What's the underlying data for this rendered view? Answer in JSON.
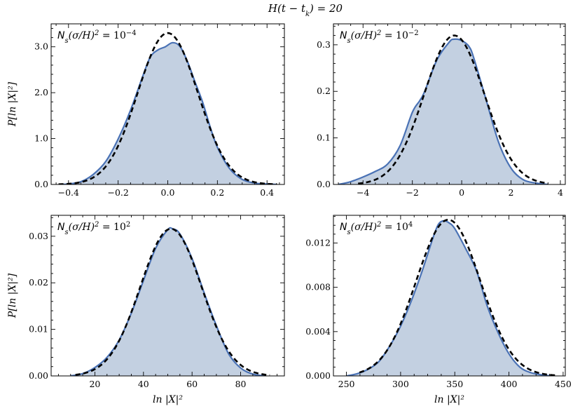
{
  "figure": {
    "title": "H(t − t_k) = 20",
    "title_parts": {
      "base": "H(t − t",
      "sub": "k",
      "tail": ") = 20"
    }
  },
  "chart_data": [
    {
      "type": "area",
      "panel": "top-left",
      "annotation": {
        "prefix": "N",
        "sub": "s",
        "mid": "(σ/H)",
        "sup1": "2",
        "eq": " = 10",
        "sup2": "−4"
      },
      "ylabel": "P[ln |X|²]",
      "xlabel": "",
      "xlim": [
        -0.47,
        0.47
      ],
      "ylim": [
        0,
        3.5
      ],
      "xticks": [
        -0.4,
        -0.2,
        0.0,
        0.2,
        0.4
      ],
      "xtick_labels": [
        "−0.4",
        "−0.2",
        "0.0",
        "0.2",
        "0.4"
      ],
      "yticks": [
        0,
        1,
        2,
        3
      ],
      "ytick_labels": [
        "0.0",
        "1.0",
        "2.0",
        "3.0"
      ],
      "series": [
        {
          "name": "histogram (smoothed)",
          "style": "filled-solid",
          "x": [
            -0.44,
            -0.4,
            -0.35,
            -0.3,
            -0.25,
            -0.2,
            -0.15,
            -0.1,
            -0.07,
            -0.04,
            -0.01,
            0.02,
            0.05,
            0.08,
            0.11,
            0.14,
            0.17,
            0.2,
            0.25,
            0.3,
            0.35,
            0.4,
            0.44
          ],
          "y": [
            0.0,
            0.01,
            0.06,
            0.22,
            0.5,
            0.99,
            1.62,
            2.37,
            2.78,
            2.93,
            3.0,
            3.09,
            3.0,
            2.67,
            2.23,
            1.8,
            1.27,
            0.81,
            0.34,
            0.11,
            0.03,
            0.01,
            0.0
          ]
        },
        {
          "name": "Gaussian fit",
          "style": "dashed",
          "mu": 0.0,
          "sigma": 0.121,
          "amplitude": 3.3,
          "x_range": [
            -0.44,
            0.44
          ]
        }
      ]
    },
    {
      "type": "area",
      "panel": "top-right",
      "annotation": {
        "prefix": "N",
        "sub": "s",
        "mid": "(σ/H)",
        "sup1": "2",
        "eq": " = 10",
        "sup2": "−2"
      },
      "ylabel": "",
      "xlabel": "",
      "xlim": [
        -5.2,
        4.2
      ],
      "ylim": [
        0,
        0.345
      ],
      "xticks": [
        -4,
        -2,
        0,
        2,
        4
      ],
      "xtick_labels": [
        "−4",
        "−2",
        "0",
        "2",
        "4"
      ],
      "yticks": [
        0,
        0.1,
        0.2,
        0.3
      ],
      "ytick_labels": [
        "0.0",
        "0.1",
        "0.2",
        "0.3"
      ],
      "series": [
        {
          "name": "histogram (smoothed)",
          "style": "filled-solid",
          "x": [
            -5.0,
            -4.5,
            -4.0,
            -3.5,
            -3.0,
            -2.5,
            -2.0,
            -1.7,
            -1.5,
            -1.0,
            -0.5,
            -0.3,
            0.0,
            0.3,
            0.5,
            1.0,
            1.5,
            2.0,
            2.5,
            3.0,
            3.5
          ],
          "y": [
            0.0,
            0.006,
            0.016,
            0.028,
            0.044,
            0.083,
            0.155,
            0.18,
            0.2,
            0.268,
            0.306,
            0.312,
            0.309,
            0.296,
            0.27,
            0.18,
            0.09,
            0.035,
            0.01,
            0.003,
            0.0
          ]
        },
        {
          "name": "Gaussian fit",
          "style": "dashed",
          "mu": -0.3,
          "sigma": 1.22,
          "amplitude": 0.32,
          "x_range": [
            -4.2,
            3.5
          ]
        }
      ]
    },
    {
      "type": "area",
      "panel": "bottom-left",
      "annotation": {
        "prefix": "N",
        "sub": "s",
        "mid": "(σ/H)",
        "sup1": "2",
        "eq": " = 10",
        "sup2": "2"
      },
      "ylabel": "P[ln |X|²]",
      "xlabel": "ln |X|²",
      "xlim": [
        2,
        98
      ],
      "ylim": [
        0,
        0.0345
      ],
      "xticks": [
        20,
        40,
        60,
        80
      ],
      "xtick_labels": [
        "20",
        "40",
        "60",
        "80"
      ],
      "yticks": [
        0,
        0.01,
        0.02,
        0.03
      ],
      "ytick_labels": [
        "0.00",
        "0.01",
        "0.02",
        "0.03"
      ],
      "series": [
        {
          "name": "histogram (smoothed)",
          "style": "filled-solid",
          "x": [
            10,
            15,
            20,
            25,
            30,
            35,
            40,
            45,
            50,
            52,
            55,
            60,
            65,
            70,
            75,
            80,
            85,
            90
          ],
          "y": [
            0.0,
            0.0005,
            0.0018,
            0.004,
            0.0077,
            0.0135,
            0.0205,
            0.0274,
            0.0314,
            0.0316,
            0.0305,
            0.0252,
            0.0178,
            0.0108,
            0.0048,
            0.0017,
            0.0004,
            0.0
          ]
        },
        {
          "name": "Gaussian fit",
          "style": "dashed",
          "mu": 51.3,
          "sigma": 12.6,
          "amplitude": 0.0316,
          "x_range": [
            12,
            92
          ]
        }
      ]
    },
    {
      "type": "area",
      "panel": "bottom-right",
      "annotation": {
        "prefix": "N",
        "sub": "s",
        "mid": "(σ/H)",
        "sup1": "2",
        "eq": " = 10",
        "sup2": "4"
      },
      "ylabel": "",
      "xlabel": "ln |X|²",
      "xlim": [
        238,
        452
      ],
      "ylim": [
        0,
        0.0145
      ],
      "xticks": [
        250,
        300,
        350,
        400,
        450
      ],
      "xtick_labels": [
        "250",
        "300",
        "350",
        "400",
        "450"
      ],
      "yticks": [
        0,
        0.004,
        0.008,
        0.012
      ],
      "ytick_labels": [
        "0.000",
        "0.004",
        "0.008",
        "0.012"
      ],
      "series": [
        {
          "name": "histogram (smoothed)",
          "style": "filled-solid",
          "x": [
            250,
            260,
            270,
            280,
            290,
            300,
            310,
            320,
            330,
            335,
            340,
            345,
            350,
            360,
            370,
            380,
            390,
            400,
            410,
            420,
            430,
            440
          ],
          "y": [
            0.0,
            0.0002,
            0.0006,
            0.0013,
            0.0027,
            0.0045,
            0.0068,
            0.0095,
            0.0125,
            0.0137,
            0.014,
            0.0138,
            0.0133,
            0.0115,
            0.0095,
            0.0063,
            0.0039,
            0.002,
            0.0008,
            0.0003,
            0.0001,
            0.0
          ]
        },
        {
          "name": "Gaussian fit",
          "style": "dashed",
          "mu": 344,
          "sigma": 29.7,
          "amplitude": 0.0141,
          "x_range": [
            262,
            445
          ]
        }
      ]
    }
  ],
  "colors": {
    "fill": "#c3d0e1",
    "line": "#4a72b5",
    "fit": "#000000",
    "axis": "#000000"
  }
}
